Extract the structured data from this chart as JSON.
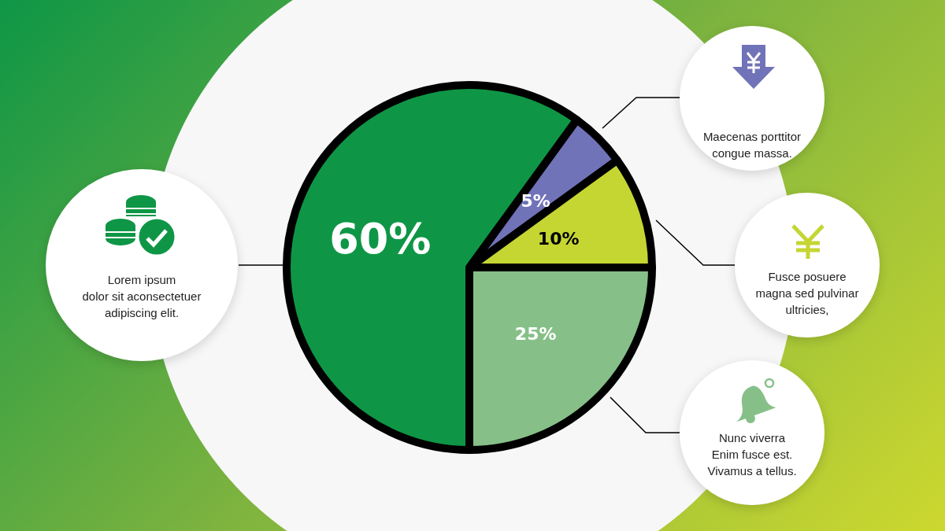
{
  "chart_data": {
    "type": "pie",
    "categories": [
      null,
      null,
      null,
      null
    ],
    "values": [
      5,
      10,
      25,
      60
    ],
    "value_labels": [
      "5%",
      "10%",
      "25%",
      "60%"
    ],
    "colors": [
      "#7173b8",
      "#c5d633",
      "#86c088",
      "#0e9646"
    ],
    "annotations": [
      "Maecenas porttitor\ncongue massa.",
      "Fusce posuere\nmagna sed pulvinar\nultricies,",
      "Nunc viverra\nEnim fusce est.\nVivamus a tellus.",
      "Lorem ipsum\ndolor sit aconsectetuer\nadipiscing elit."
    ]
  }
}
